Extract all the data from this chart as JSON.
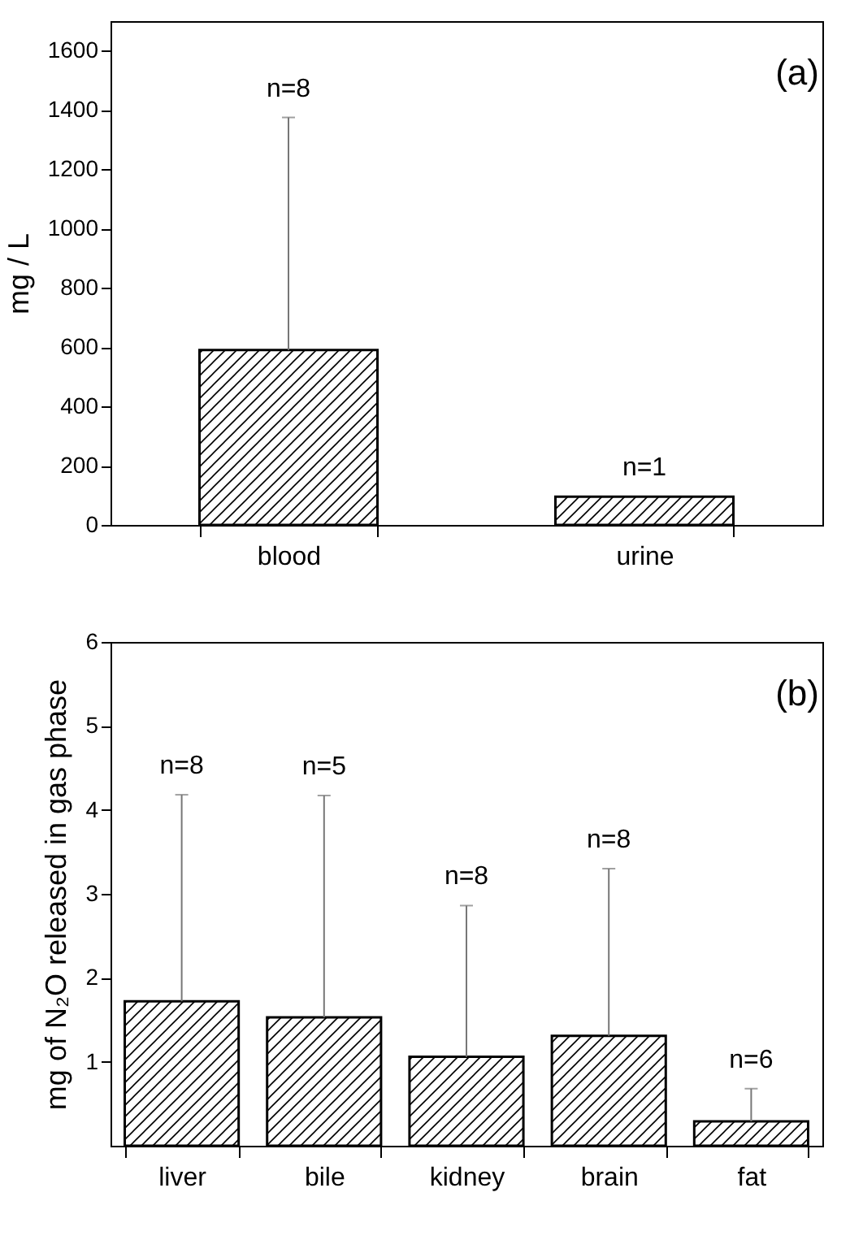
{
  "chart_data": [
    {
      "type": "bar",
      "ylabel": "mg  / L",
      "categories": [
        "blood",
        "urine"
      ],
      "values": [
        590,
        95
      ],
      "errors": [
        [
          590,
          1375
        ],
        null
      ],
      "color": "#000000",
      "ylim": [
        0,
        1700
      ],
      "yticks": [
        0,
        200,
        400,
        600,
        800,
        1000,
        1200,
        1400,
        1600
      ],
      "grid": false,
      "annotations": [
        "(a)",
        {
          "text": "n=8",
          "x": "blood",
          "y": 1375
        },
        {
          "text": "n=1",
          "x": "urine",
          "y": 95
        }
      ]
    },
    {
      "type": "bar",
      "ylabel": "mg of N₂O released in gas phase",
      "categories": [
        "liver",
        "bile",
        "kidney",
        "brain",
        "fat"
      ],
      "values": [
        1.72,
        1.53,
        1.06,
        1.31,
        0.29
      ],
      "errors": [
        [
          1.72,
          4.18
        ],
        [
          1.53,
          4.17
        ],
        [
          1.06,
          2.86
        ],
        [
          1.31,
          3.3
        ],
        [
          0.29,
          0.68
        ]
      ],
      "color": "#000000",
      "ylim": [
        0,
        6
      ],
      "yticks": [
        1,
        2,
        3,
        4,
        5,
        6
      ],
      "grid": false,
      "annotations": [
        "(b)",
        {
          "text": "n=8",
          "x": "liver",
          "y": 4.18
        },
        {
          "text": "n=5",
          "x": "bile",
          "y": 4.17
        },
        {
          "text": "n=8",
          "x": "kidney",
          "y": 2.86
        },
        {
          "text": "n=8",
          "x": "brain",
          "y": 3.3
        },
        {
          "text": "n=6",
          "x": "fat",
          "y": 0.68
        }
      ]
    }
  ]
}
